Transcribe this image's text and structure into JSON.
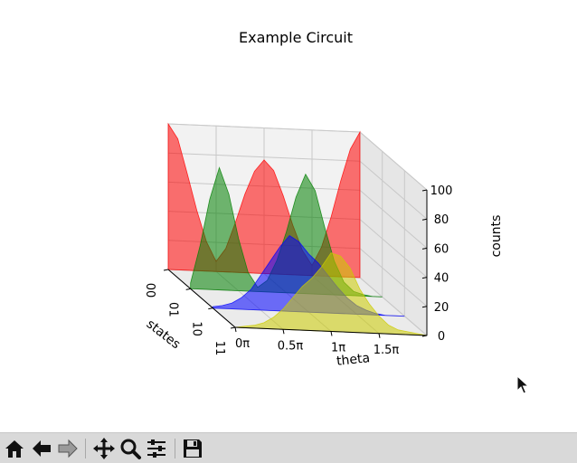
{
  "window": {
    "toolbar": [
      {
        "name": "home-button",
        "icon": "home-icon"
      },
      {
        "name": "back-button",
        "icon": "back-arrow-icon"
      },
      {
        "name": "forward-button",
        "icon": "forward-arrow-icon"
      },
      {
        "name": "pan-button",
        "icon": "move-icon"
      },
      {
        "name": "zoom-button",
        "icon": "magnifier-icon"
      },
      {
        "name": "configure-subplots-button",
        "icon": "sliders-icon"
      },
      {
        "name": "save-button",
        "icon": "floppy-disk-icon"
      }
    ]
  },
  "chart_data": {
    "type": "area",
    "title": "Example Circuit",
    "xlabel": "theta",
    "ylabel": "states",
    "zlabel": "counts",
    "x_ticks": [
      "0π",
      "0.5π",
      "1π",
      "1.5π"
    ],
    "y_ticks": [
      "00",
      "01",
      "10",
      "11"
    ],
    "z_ticks": [
      "0",
      "20",
      "40",
      "60",
      "80",
      "100"
    ],
    "zlim": [
      0,
      100
    ],
    "xlim_pi": [
      0,
      2
    ],
    "grid": true,
    "series": [
      {
        "name": "00",
        "color": "#ff0000",
        "x_pi": [
          0,
          0.1,
          0.2,
          0.3,
          0.4,
          0.5,
          0.6,
          0.7,
          0.8,
          0.9,
          1.0,
          1.1,
          1.2,
          1.3,
          1.4,
          1.5,
          1.6,
          1.7,
          1.8,
          1.9,
          2.0
        ],
        "values": [
          100,
          90,
          66,
          41,
          20,
          7,
          16,
          34,
          54,
          70,
          78,
          71,
          54,
          34,
          17,
          7,
          20,
          41,
          66,
          88,
          100
        ]
      },
      {
        "name": "01",
        "color": "#008000",
        "x_pi": [
          0,
          0.1,
          0.2,
          0.3,
          0.4,
          0.5,
          0.6,
          0.7,
          0.8,
          0.9,
          1.0,
          1.1,
          1.2,
          1.3,
          1.4,
          1.5,
          1.6,
          1.7,
          1.8,
          1.9,
          2.0
        ],
        "values": [
          4,
          30,
          62,
          84,
          66,
          36,
          13,
          3,
          8,
          22,
          42,
          66,
          82,
          71,
          46,
          23,
          9,
          3,
          1,
          0,
          0
        ]
      },
      {
        "name": "10",
        "color": "#0000ff",
        "x_pi": [
          0,
          0.1,
          0.2,
          0.3,
          0.4,
          0.5,
          0.6,
          0.7,
          0.8,
          0.9,
          1.0,
          1.1,
          1.2,
          1.3,
          1.4,
          1.5,
          1.6,
          1.7,
          1.8,
          1.9,
          2.0
        ],
        "values": [
          1,
          2,
          4,
          8,
          14,
          24,
          34,
          44,
          52,
          48,
          40,
          34,
          26,
          18,
          11,
          6,
          3,
          1,
          0,
          0,
          0
        ]
      },
      {
        "name": "11",
        "color": "#cccc00",
        "x_pi": [
          0,
          0.1,
          0.2,
          0.3,
          0.4,
          0.5,
          0.6,
          0.7,
          0.8,
          0.9,
          1.0,
          1.1,
          1.2,
          1.3,
          1.4,
          1.5,
          1.6,
          1.7,
          1.8,
          1.9,
          2.0
        ],
        "values": [
          0,
          1,
          2,
          4,
          8,
          14,
          22,
          30,
          36,
          44,
          54,
          52,
          44,
          30,
          20,
          12,
          6,
          3,
          2,
          1,
          0
        ]
      }
    ]
  }
}
